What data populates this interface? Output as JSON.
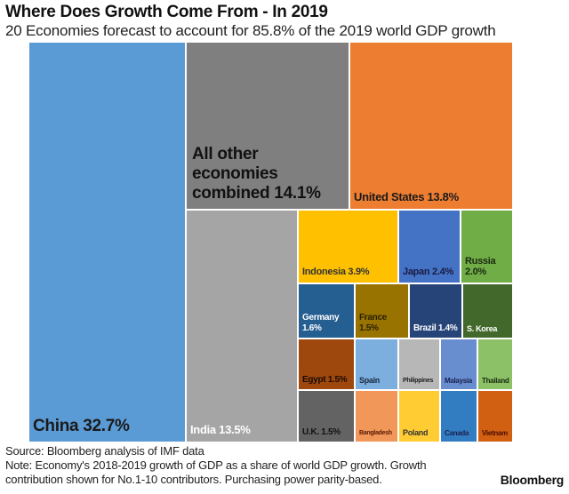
{
  "title": "Where Does Growth Come From - In 2019",
  "subtitle": "20 Economies forecast to account for 85.8% of the 2019 world GDP growth",
  "footer": {
    "source": "Source: Bloomberg analysis of IMF data",
    "note_line1": "Note: Economy's 2018-2019 growth of GDP as a share of world GDP growth. Growth",
    "note_line2": "contribution shown for No.1-10 contributors. Purchasing power parity-based.",
    "logo": "Bloomberg"
  },
  "chart_data": {
    "type": "treemap",
    "title": "Where Does Growth Come From - In 2019",
    "unit": "% of world GDP growth",
    "items": [
      {
        "name": "China",
        "label": "China 32.7%",
        "value": 32.7,
        "color": "#5b9bd5",
        "text_color": "#1a1a1a"
      },
      {
        "name": "All other economies",
        "label": "All other economies combined 14.1%",
        "value": 14.1,
        "color": "#7f7f7f",
        "text_color": "#111111"
      },
      {
        "name": "United States",
        "label": "United States 13.8%",
        "value": 13.8,
        "color": "#ed7d31",
        "text_color": "#1a1a1a"
      },
      {
        "name": "India",
        "label": "India 13.5%",
        "value": 13.5,
        "color": "#a5a5a5",
        "text_color": "#ffffff"
      },
      {
        "name": "Indonesia",
        "label": "Indonesia 3.9%",
        "value": 3.9,
        "color": "#ffc000",
        "text_color": "#333333"
      },
      {
        "name": "Japan",
        "label": "Japan 2.4%",
        "value": 2.4,
        "color": "#4472c4",
        "text_color": "#1a1a40"
      },
      {
        "name": "Russia",
        "label": "Russia 2.0%",
        "value": 2.0,
        "color": "#70ad47",
        "text_color": "#1a2a10"
      },
      {
        "name": "Germany",
        "label": "Germany 1.6%",
        "value": 1.6,
        "color": "#255e91",
        "text_color": "#ffffff"
      },
      {
        "name": "France",
        "label": "France 1.5%",
        "value": 1.5,
        "color": "#997300",
        "text_color": "#2a2000"
      },
      {
        "name": "Brazil",
        "label": "Brazil 1.4%",
        "value": 1.4,
        "color": "#264478",
        "text_color": "#ffffff"
      },
      {
        "name": "S. Korea",
        "label": "S. Korea",
        "value": null,
        "color": "#43682b",
        "text_color": "#ffffff"
      },
      {
        "name": "Egypt",
        "label": "Egypt 1.5%",
        "value": 1.5,
        "color": "#9e480e",
        "text_color": "#1a0a00"
      },
      {
        "name": "Spain",
        "label": "Spain",
        "value": null,
        "color": "#7cafdd",
        "text_color": "#1a2a40"
      },
      {
        "name": "Philippines",
        "label": "Philippines",
        "value": null,
        "color": "#b7b7b7",
        "text_color": "#222222"
      },
      {
        "name": "Malaysia",
        "label": "Malaysia",
        "value": null,
        "color": "#698ed0",
        "text_color": "#1a2050"
      },
      {
        "name": "Thailand",
        "label": "Thailand",
        "value": null,
        "color": "#8cc168",
        "text_color": "#1a2a10"
      },
      {
        "name": "U.K.",
        "label": "U.K. 1.5%",
        "value": 1.5,
        "color": "#636363",
        "text_color": "#111111"
      },
      {
        "name": "Bangladesh",
        "label": "Bangladesh",
        "value": null,
        "color": "#f1975a",
        "text_color": "#5a1a00"
      },
      {
        "name": "Poland",
        "label": "Poland",
        "value": null,
        "color": "#ffcd33",
        "text_color": "#333333"
      },
      {
        "name": "Canada",
        "label": "Canada",
        "value": null,
        "color": "#327dc2",
        "text_color": "#1a2050"
      },
      {
        "name": "Vietnam",
        "label": "Vietnam",
        "value": null,
        "color": "#d26012",
        "text_color": "#4a0a00"
      }
    ]
  }
}
